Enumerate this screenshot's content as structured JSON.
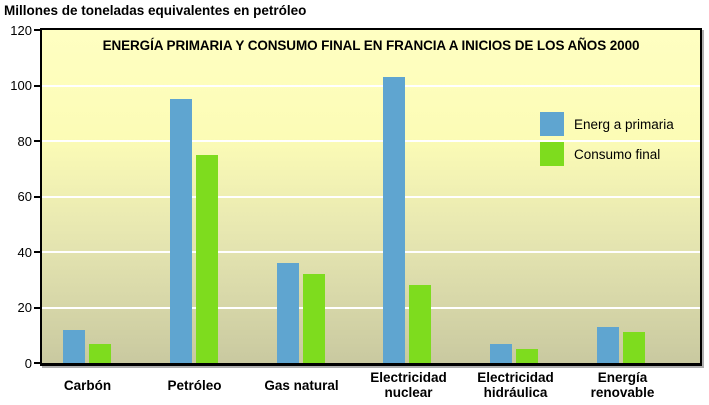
{
  "chart_data": {
    "type": "bar",
    "title": "ENERGÍA PRIMARIA Y CONSUMO FINAL EN FRANCIA A INICIOS DE LOS AÑOS 2000",
    "unit_label": "Millones de toneladas equivalentes en petróleo",
    "categories": [
      "Carbón",
      "Petróleo",
      "Gas natural",
      "Electricidad\nnuclear",
      "Electricidad\nhidráulica",
      "Energía\nrenovable"
    ],
    "series": [
      {
        "name": "Energ a primaria",
        "color": "#5fa5d0",
        "values": [
          12,
          95,
          36,
          103,
          7,
          13
        ]
      },
      {
        "name": "Consumo final",
        "color": "#7edc1e",
        "values": [
          7,
          75,
          32,
          28,
          5,
          11
        ]
      }
    ],
    "ylim": [
      0,
      120
    ],
    "yticks": [
      0,
      20,
      40,
      60,
      80,
      100,
      120
    ],
    "grid": true,
    "gridline_color": "#ffffff",
    "legend_position": "upper-right",
    "plot_bg_gradient": [
      "#ffffc2",
      "#c9c9a0"
    ]
  }
}
